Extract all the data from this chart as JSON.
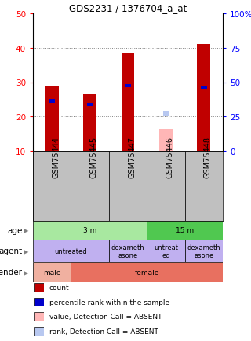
{
  "title": "GDS2231 / 1376704_a_at",
  "samples": [
    "GSM75444",
    "GSM75445",
    "GSM75447",
    "GSM75446",
    "GSM75448"
  ],
  "bar_bottom": 10,
  "count_values": [
    29,
    26.5,
    38.5,
    0,
    41
  ],
  "percentile_values": [
    24.5,
    23.5,
    29,
    0,
    28.5
  ],
  "absent_value": [
    0,
    0,
    0,
    16.5,
    0
  ],
  "absent_rank": [
    0,
    0,
    0,
    21,
    0
  ],
  "is_absent": [
    false,
    false,
    false,
    true,
    false
  ],
  "ylim_left": [
    10,
    50
  ],
  "ylim_right": [
    0,
    100
  ],
  "yticks_left": [
    10,
    20,
    30,
    40,
    50
  ],
  "yticks_right": [
    0,
    25,
    50,
    75,
    100
  ],
  "yticklabels_right": [
    "0",
    "25",
    "50",
    "75",
    "100%"
  ],
  "color_count": "#c00000",
  "color_percentile": "#0000cc",
  "color_absent_value": "#ffb6b6",
  "color_absent_rank": "#b8c8f0",
  "color_sample_bg": "#c0c0c0",
  "age_data": [
    {
      "label": "3 m",
      "start": 0,
      "end": 3,
      "color": "#a8e8a0"
    },
    {
      "label": "15 m",
      "start": 3,
      "end": 5,
      "color": "#50c850"
    }
  ],
  "agent_data": [
    {
      "label": "untreated",
      "start": 0,
      "end": 2,
      "color": "#c0b0f0"
    },
    {
      "label": "dexameth\nasone",
      "start": 2,
      "end": 3,
      "color": "#c0b0f0"
    },
    {
      "label": "untreat\ned",
      "start": 3,
      "end": 4,
      "color": "#c0b0f0"
    },
    {
      "label": "dexameth\nasone",
      "start": 4,
      "end": 5,
      "color": "#c0b0f0"
    }
  ],
  "gender_data": [
    {
      "label": "male",
      "start": 0,
      "end": 1,
      "color": "#f0b0a0"
    },
    {
      "label": "female",
      "start": 1,
      "end": 5,
      "color": "#e87060"
    }
  ],
  "row_labels": [
    "age",
    "agent",
    "gender"
  ],
  "legend": [
    {
      "label": "count",
      "color": "#c00000"
    },
    {
      "label": "percentile rank within the sample",
      "color": "#0000cc"
    },
    {
      "label": "value, Detection Call = ABSENT",
      "color": "#ffb6b6"
    },
    {
      "label": "rank, Detection Call = ABSENT",
      "color": "#b8c8f0"
    }
  ]
}
